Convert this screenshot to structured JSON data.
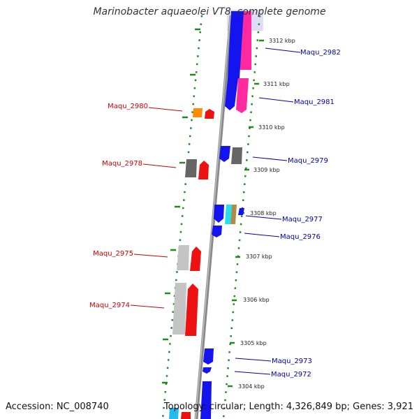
{
  "title": "Marinobacter aquaeolei VT8, complete genome",
  "footer": {
    "accession": "Accession: NC_008740",
    "topology": "Topology: circular; Length: 4,326,849 bp; Genes: 3,921"
  },
  "colors": {
    "left_strand_label": "#cc0000",
    "right_strand_label": "#0000aa",
    "tick": "#228822",
    "axis": "#888888"
  },
  "scale_labels": [
    "3312 kbp",
    "3311 kbp",
    "3310 kbp",
    "3309 kbp",
    "3308 kbp",
    "3307 kbp",
    "3306 kbp",
    "3305 kbp",
    "3304 kbp"
  ],
  "genes_left": [
    {
      "name": "Maqu_2980"
    },
    {
      "name": "Maqu_2978"
    },
    {
      "name": "Maqu_2975"
    },
    {
      "name": "Maqu_2974"
    }
  ],
  "genes_right": [
    {
      "name": "Maqu_2982"
    },
    {
      "name": "Maqu_2981"
    },
    {
      "name": "Maqu_2979"
    },
    {
      "name": "Maqu_2977"
    },
    {
      "name": "Maqu_2976"
    },
    {
      "name": "Maqu_2973"
    },
    {
      "name": "Maqu_2972"
    }
  ]
}
